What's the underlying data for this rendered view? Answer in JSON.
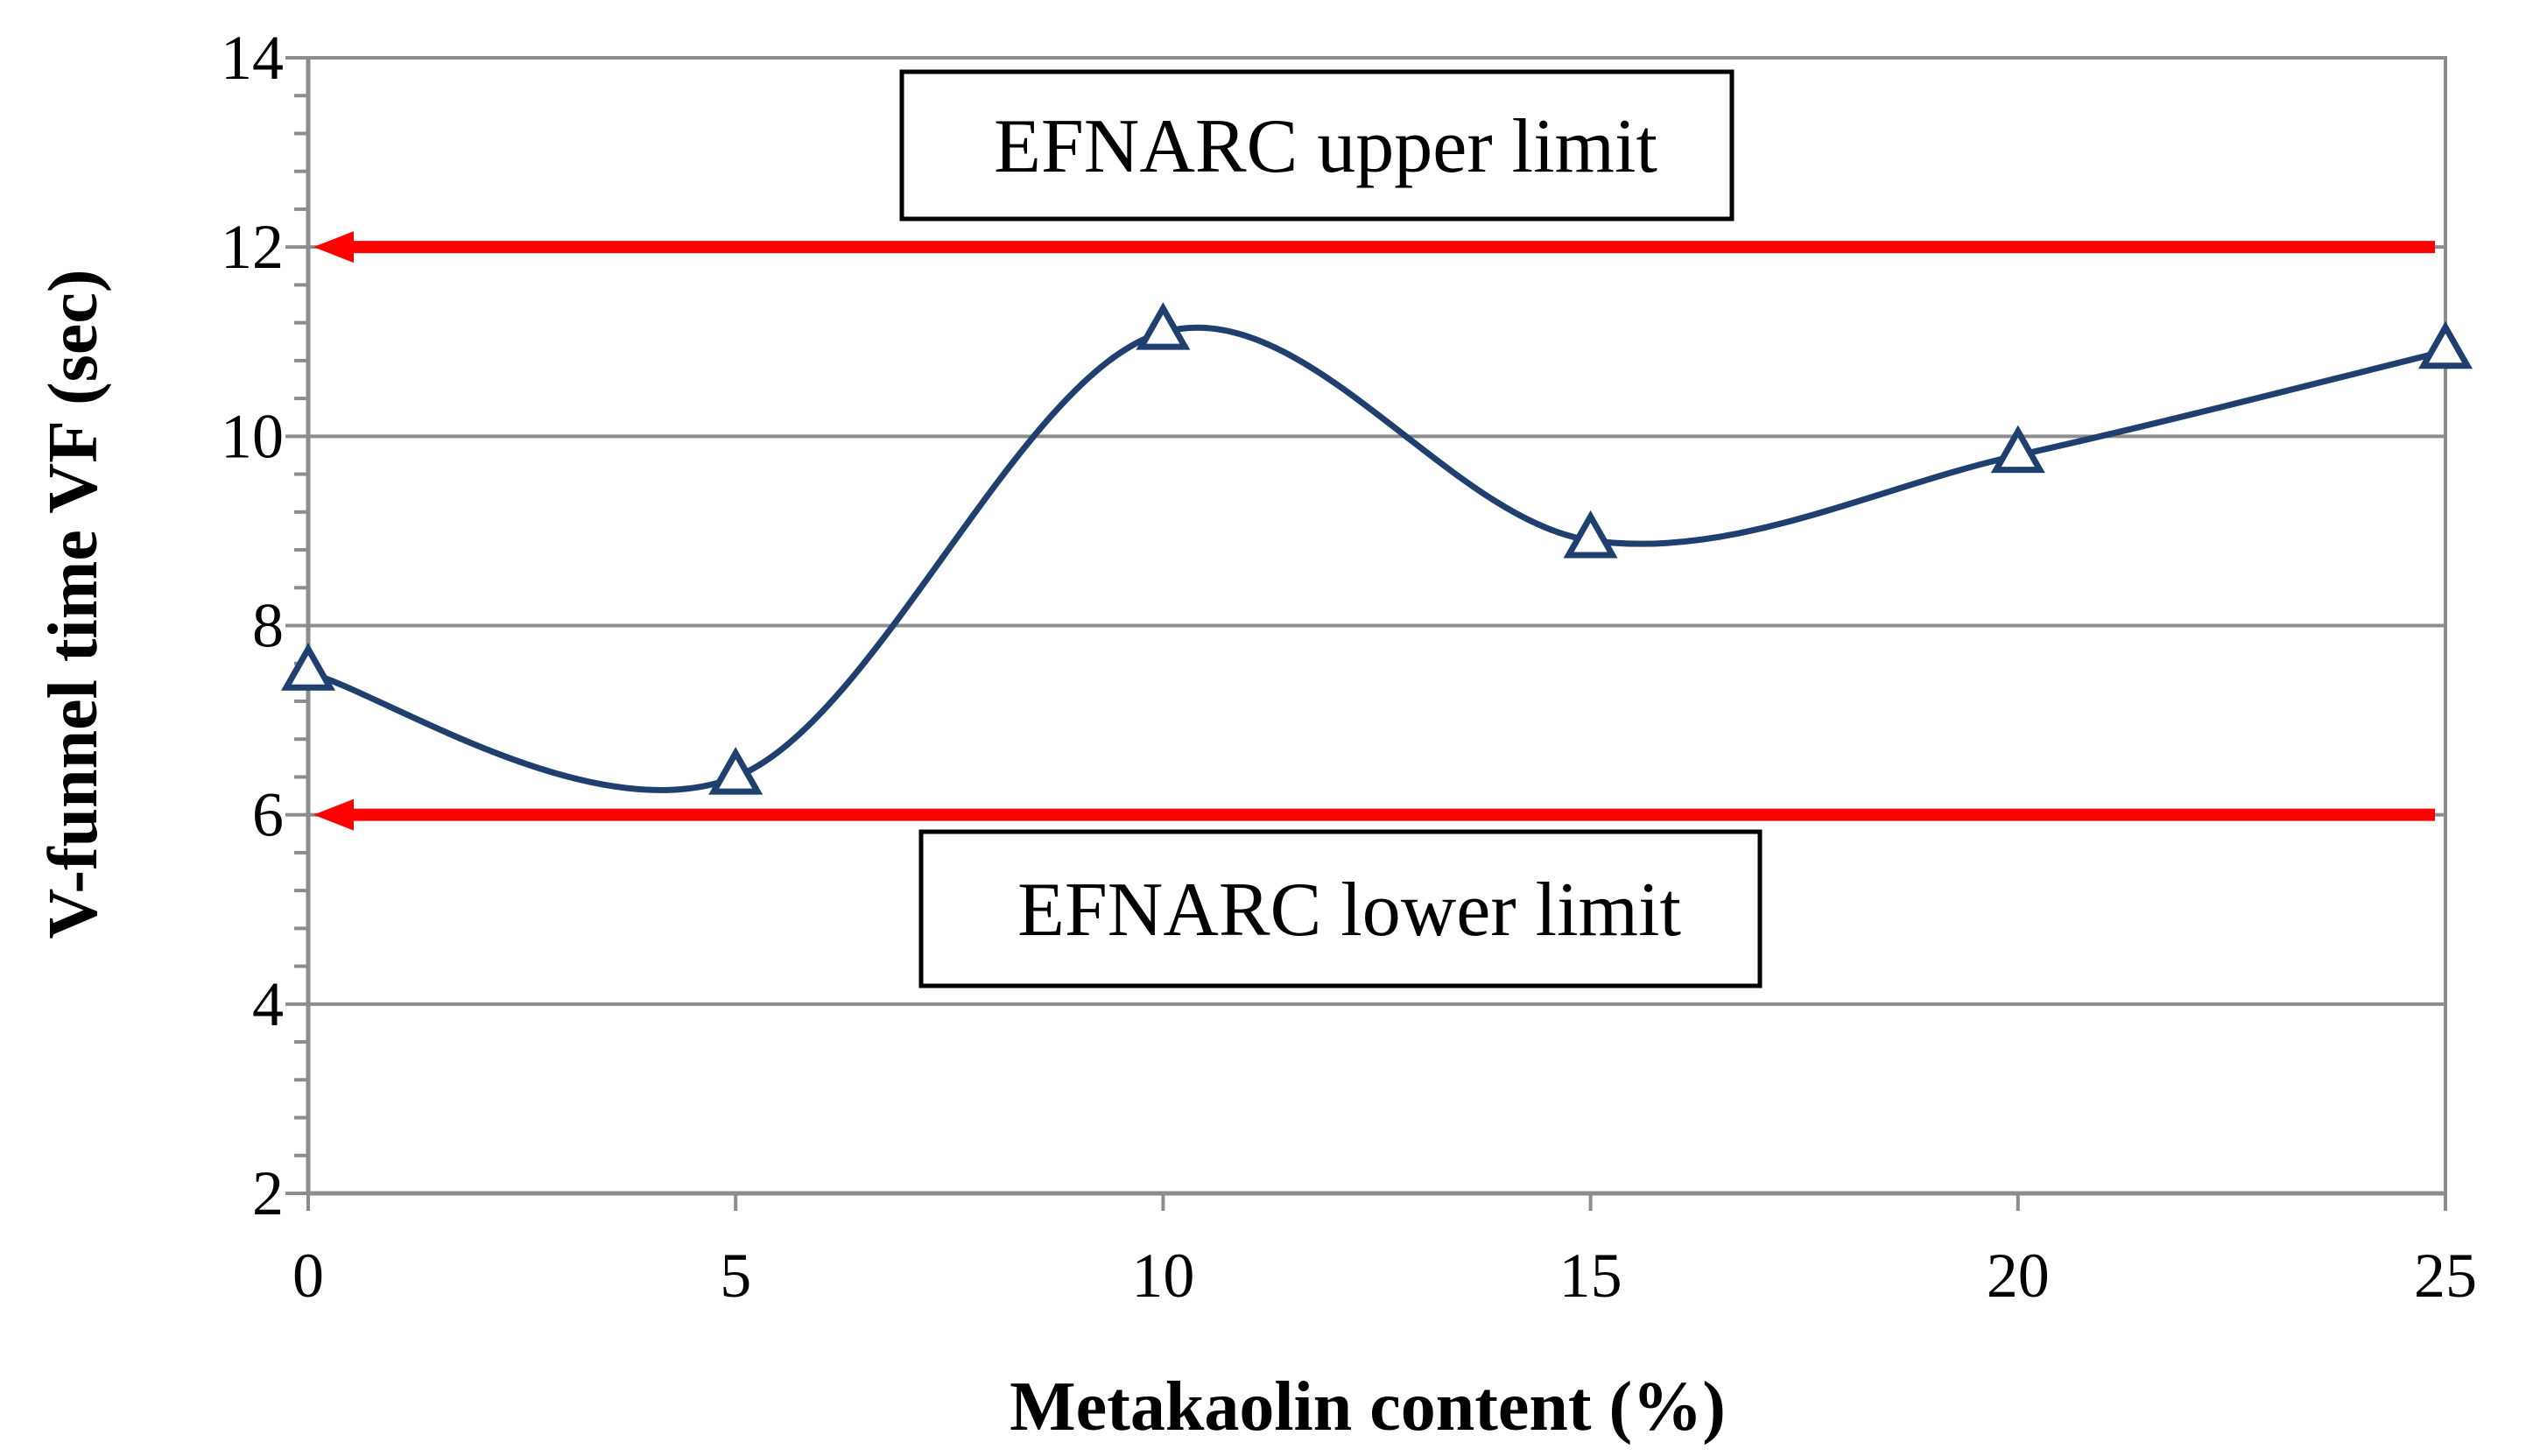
{
  "chart_data": {
    "type": "line",
    "title": "",
    "xlabel": "Metakaolin content (%)",
    "ylabel": "V-funnel time VF (sec)",
    "x": [
      0,
      5,
      10,
      15,
      20,
      25
    ],
    "x_tick_labels": [
      "0",
      "5",
      "10",
      "15",
      "20",
      "25"
    ],
    "y_tick_labels": [
      "2",
      "4",
      "6",
      "8",
      "10",
      "12",
      "14"
    ],
    "xlim": [
      0,
      25
    ],
    "ylim": [
      2,
      14
    ],
    "grid": "horizontal",
    "series": [
      {
        "values": [
          7.5,
          6.4,
          11.1,
          8.9,
          9.8,
          10.9
        ],
        "color": "#1f3f6e",
        "marker": "triangle-open",
        "smooth": true
      }
    ],
    "reference_lines": [
      {
        "y": 12,
        "label": "EFNARC upper limit",
        "color": "#ff0000",
        "arrow": "left"
      },
      {
        "y": 6,
        "label": "EFNARC lower limit",
        "color": "#ff0000",
        "arrow": "left"
      }
    ]
  }
}
